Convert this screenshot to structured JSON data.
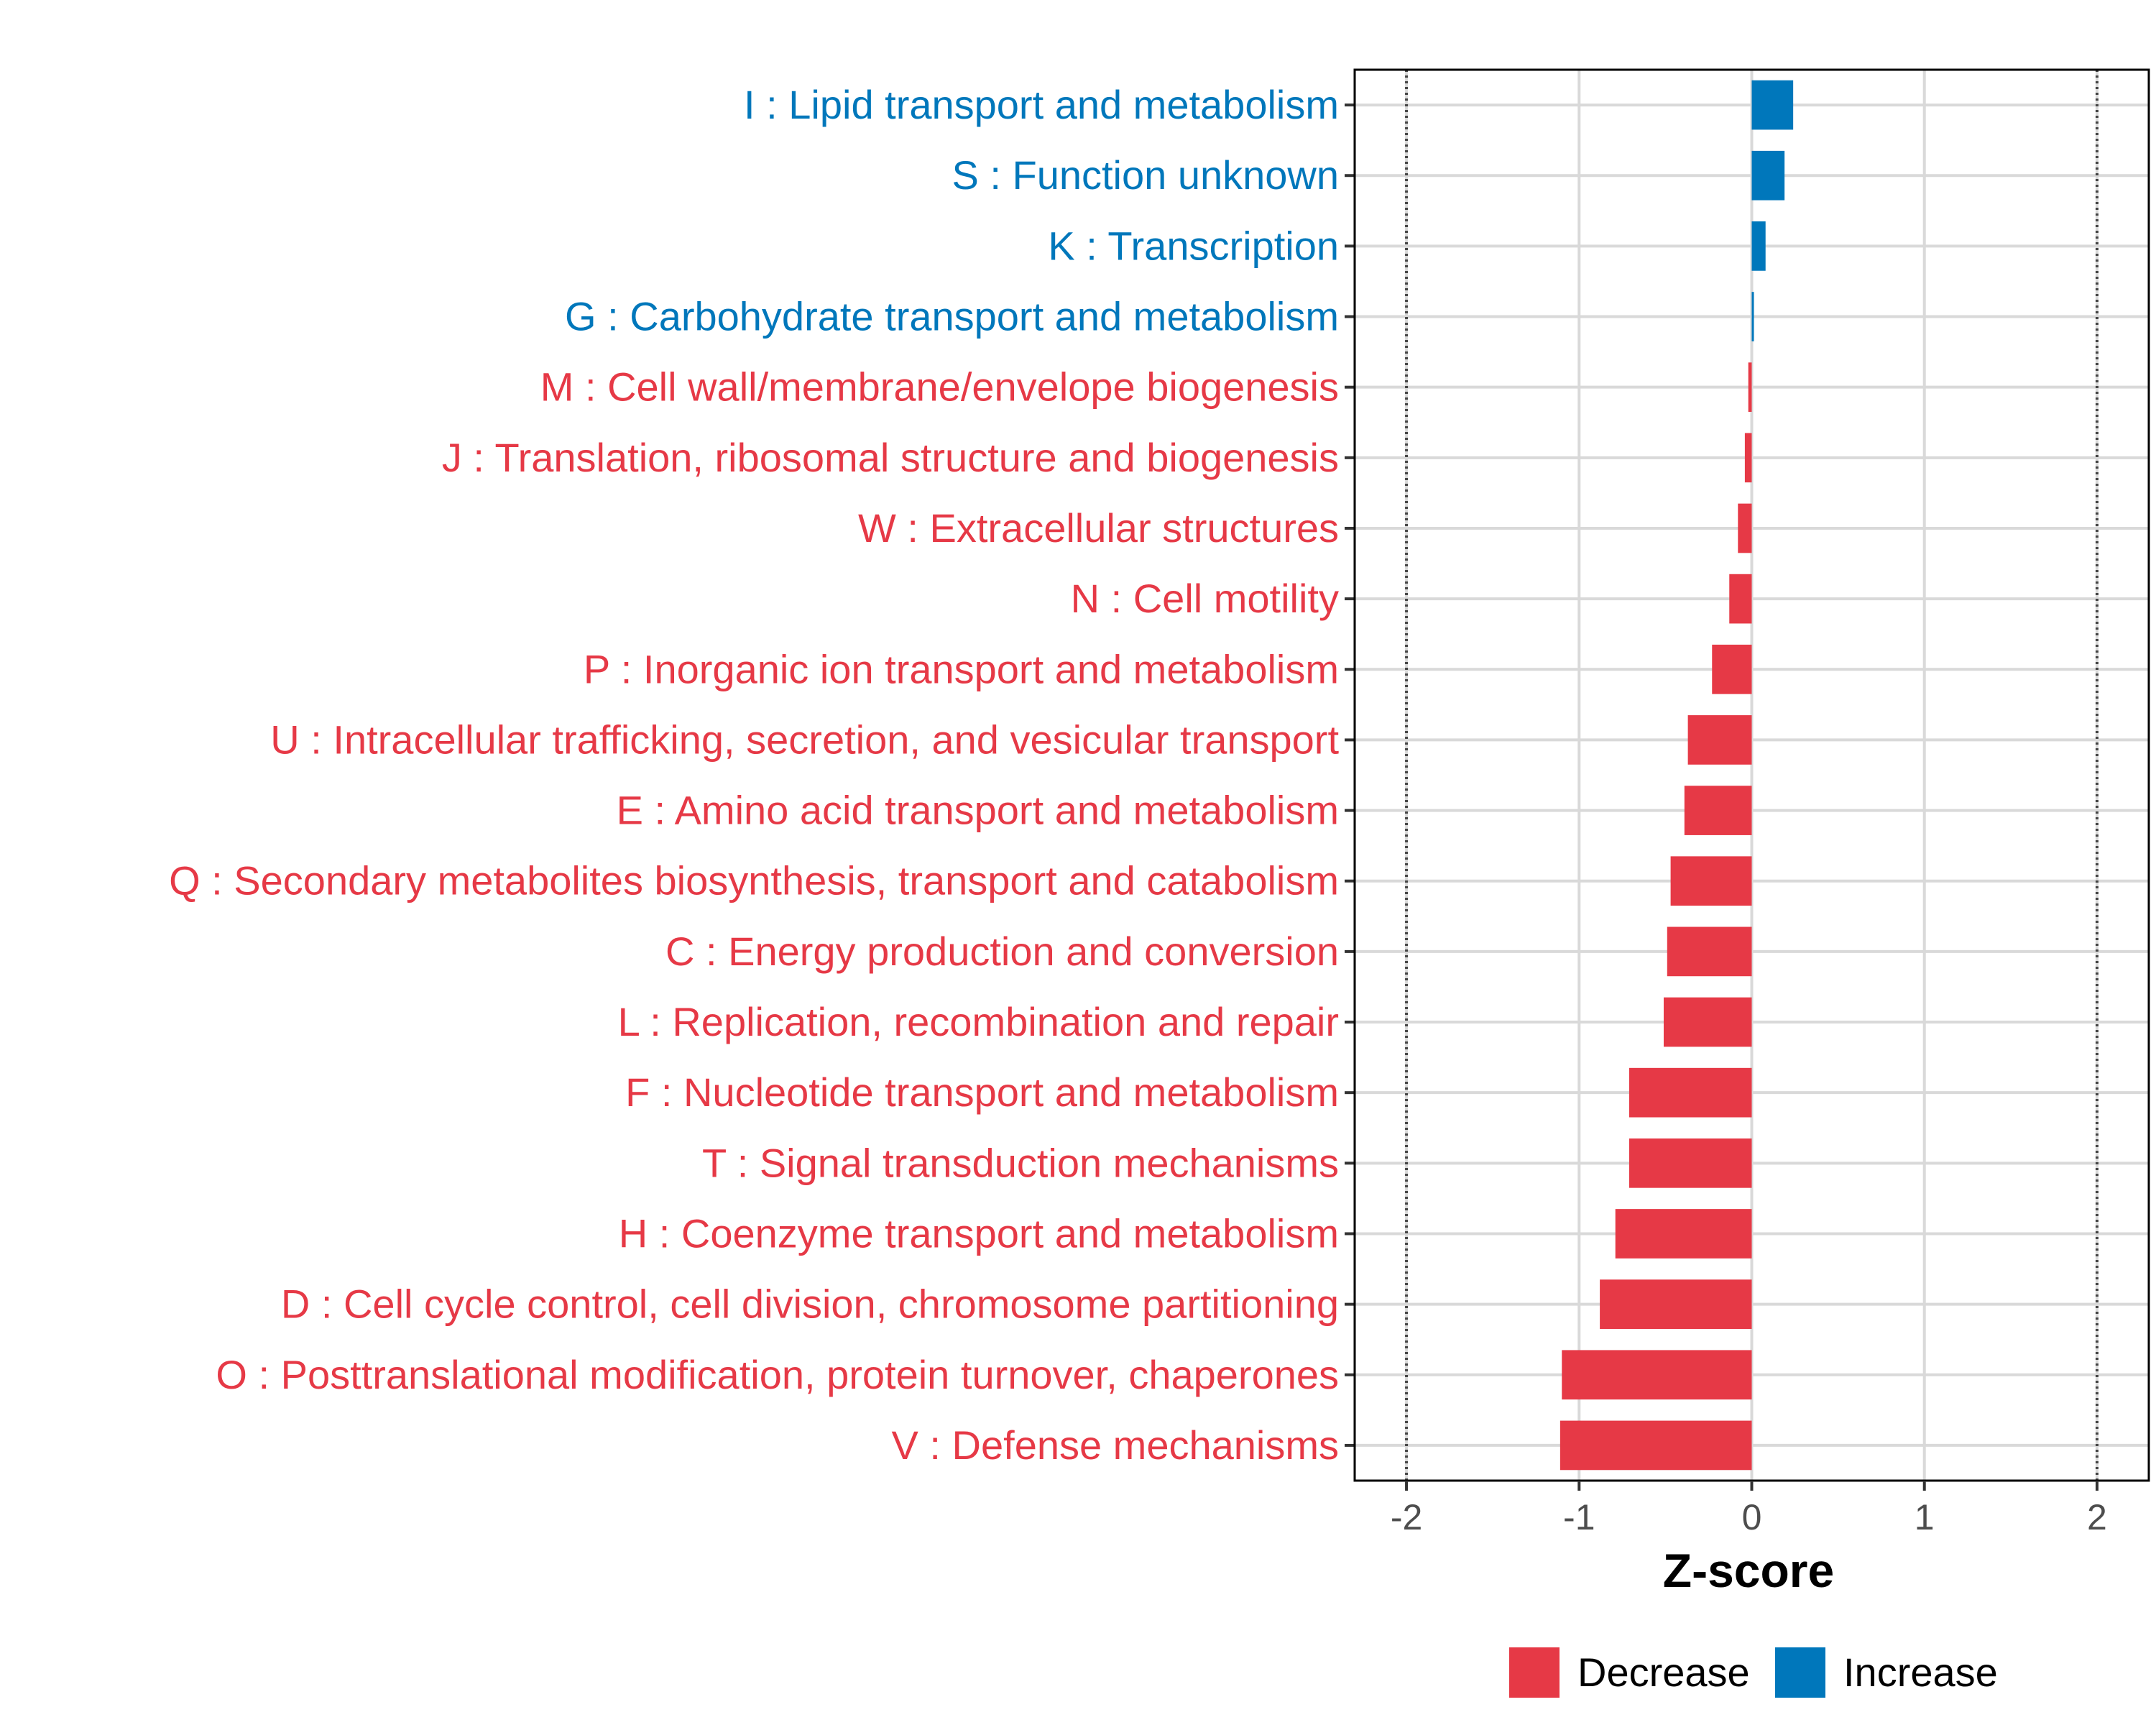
{
  "chart_data": {
    "type": "bar",
    "orientation": "horizontal",
    "xlabel": "Z-score",
    "ylabel": "",
    "xlim": [
      -2.3,
      2.3
    ],
    "xticks": [
      -2,
      -1,
      0,
      1,
      2
    ],
    "xtick_labels": [
      "-2",
      "-1",
      "0",
      "1",
      "2"
    ],
    "reference_lines": [
      -2,
      2
    ],
    "grid": true,
    "categories": [
      "I : Lipid transport and metabolism",
      "S : Function unknown",
      "K : Transcription",
      "G : Carbohydrate transport and metabolism",
      "M : Cell wall/membrane/envelope biogenesis",
      "J : Translation, ribosomal structure and biogenesis",
      "W : Extracellular structures",
      "N : Cell motility",
      "P : Inorganic ion transport and metabolism",
      "U : Intracellular trafficking, secretion, and vesicular transport",
      "E : Amino acid transport and metabolism",
      "Q : Secondary metabolites biosynthesis, transport and catabolism",
      "C : Energy production and conversion",
      "L : Replication, recombination and repair",
      "F : Nucleotide transport and metabolism",
      "T : Signal transduction mechanisms",
      "H : Coenzyme transport and metabolism",
      "D : Cell cycle control, cell division, chromosome partitioning",
      "O : Posttranslational modification, protein turnover, chaperones",
      "V : Defense mechanisms"
    ],
    "values": [
      0.24,
      0.19,
      0.08,
      0.01,
      -0.02,
      -0.04,
      -0.08,
      -0.13,
      -0.23,
      -0.37,
      -0.39,
      -0.47,
      -0.49,
      -0.51,
      -0.71,
      -0.71,
      -0.79,
      -0.88,
      -1.1,
      -1.11
    ],
    "groups": [
      "Increase",
      "Increase",
      "Increase",
      "Increase",
      "Decrease",
      "Decrease",
      "Decrease",
      "Decrease",
      "Decrease",
      "Decrease",
      "Decrease",
      "Decrease",
      "Decrease",
      "Decrease",
      "Decrease",
      "Decrease",
      "Decrease",
      "Decrease",
      "Decrease",
      "Decrease"
    ],
    "legend": [
      {
        "name": "Decrease",
        "color": "#e63946"
      },
      {
        "name": "Increase",
        "color": "#0077bb"
      }
    ],
    "legend_position": "bottom"
  }
}
